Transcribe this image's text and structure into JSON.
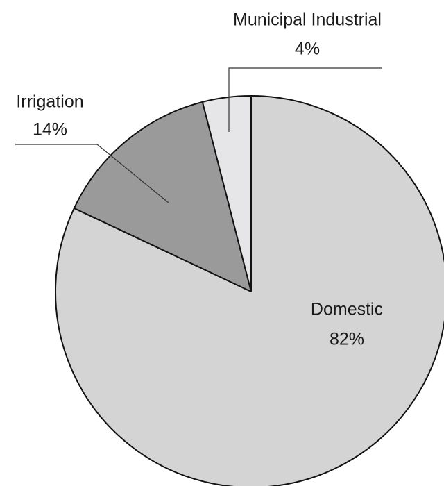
{
  "chart_data": {
    "type": "pie",
    "categories": [
      "Domestic",
      "Irrigation",
      "Municipal Industrial"
    ],
    "values": [
      82,
      14,
      4
    ],
    "value_labels": [
      "82%",
      "14%",
      "4%"
    ],
    "colors": [
      "#d4d4d4",
      "#9a9a9b",
      "#e6e6e8"
    ]
  }
}
